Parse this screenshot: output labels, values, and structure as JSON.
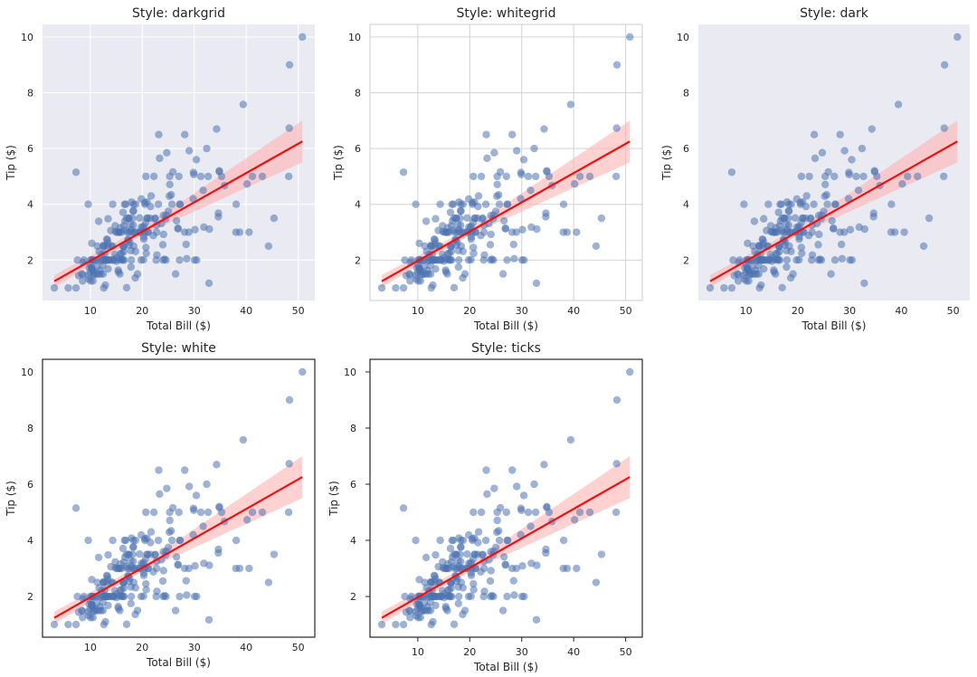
{
  "chart_data": [
    {
      "type": "scatter",
      "title": "Style: darkgrid",
      "style": "darkgrid",
      "xlabel": "Total Bill ($)",
      "ylabel": "Tip ($)",
      "x_ticks": [
        "10",
        "20",
        "30",
        "40",
        "50"
      ],
      "y_ticks": [
        "2",
        "4",
        "6",
        "8",
        "10"
      ],
      "xlim": [
        0.8,
        53.2
      ],
      "ylim": [
        0.55,
        10.45
      ],
      "grid": true
    },
    {
      "type": "scatter",
      "title": "Style: whitegrid",
      "style": "whitegrid",
      "xlabel": "Total Bill ($)",
      "ylabel": "Tip ($)",
      "x_ticks": [
        "10",
        "20",
        "30",
        "40",
        "50"
      ],
      "y_ticks": [
        "2",
        "4",
        "6",
        "8",
        "10"
      ],
      "xlim": [
        0.8,
        53.2
      ],
      "ylim": [
        0.55,
        10.45
      ],
      "grid": true
    },
    {
      "type": "scatter",
      "title": "Style: dark",
      "style": "dark",
      "xlabel": "Total Bill ($)",
      "ylabel": "Tip ($)",
      "x_ticks": [
        "10",
        "20",
        "30",
        "40",
        "50"
      ],
      "y_ticks": [
        "2",
        "4",
        "6",
        "8",
        "10"
      ],
      "xlim": [
        0.8,
        53.2
      ],
      "ylim": [
        0.55,
        10.45
      ],
      "grid": false
    },
    {
      "type": "scatter",
      "title": "Style: white",
      "style": "white",
      "xlabel": "Total Bill ($)",
      "ylabel": "Tip ($)",
      "x_ticks": [
        "10",
        "20",
        "30",
        "40",
        "50"
      ],
      "y_ticks": [
        "2",
        "4",
        "6",
        "8",
        "10"
      ],
      "xlim": [
        0.8,
        53.2
      ],
      "ylim": [
        0.55,
        10.45
      ],
      "grid": false
    },
    {
      "type": "scatter",
      "title": "Style: ticks",
      "style": "ticks",
      "xlabel": "Total Bill ($)",
      "ylabel": "Tip ($)",
      "x_ticks": [
        "10",
        "20",
        "30",
        "40",
        "50"
      ],
      "y_ticks": [
        "2",
        "4",
        "6",
        "8",
        "10"
      ],
      "xlim": [
        0.8,
        53.2
      ],
      "ylim": [
        0.55,
        10.45
      ],
      "grid": false
    }
  ],
  "shared": {
    "points": [
      [
        3.07,
        1.0
      ],
      [
        5.75,
        1.0
      ],
      [
        7.25,
        1.0
      ],
      [
        7.51,
        2.0
      ],
      [
        7.25,
        5.15
      ],
      [
        7.74,
        1.44
      ],
      [
        8.35,
        1.5
      ],
      [
        8.51,
        1.25
      ],
      [
        8.52,
        1.48
      ],
      [
        8.58,
        1.92
      ],
      [
        8.77,
        2.0
      ],
      [
        9.55,
        1.45
      ],
      [
        9.6,
        4.0
      ],
      [
        9.68,
        1.32
      ],
      [
        9.78,
        1.73
      ],
      [
        9.94,
        1.56
      ],
      [
        10.07,
        1.25
      ],
      [
        10.07,
        1.83
      ],
      [
        10.09,
        2.0
      ],
      [
        10.26,
        1.71
      ],
      [
        10.27,
        1.71
      ],
      [
        10.29,
        2.6
      ],
      [
        10.33,
        1.67
      ],
      [
        10.33,
        2.0
      ],
      [
        10.34,
        1.66
      ],
      [
        10.34,
        2.0
      ],
      [
        10.51,
        1.25
      ],
      [
        10.59,
        1.61
      ],
      [
        10.63,
        2.0
      ],
      [
        10.65,
        1.5
      ],
      [
        10.77,
        1.47
      ],
      [
        11.02,
        1.98
      ],
      [
        11.17,
        1.5
      ],
      [
        11.24,
        1.76
      ],
      [
        11.35,
        2.5
      ],
      [
        11.38,
        2.0
      ],
      [
        11.59,
        1.5
      ],
      [
        11.61,
        3.39
      ],
      [
        11.69,
        2.31
      ],
      [
        11.87,
        1.63
      ],
      [
        12.02,
        1.97
      ],
      [
        12.03,
        1.5
      ],
      [
        12.16,
        2.2
      ],
      [
        12.26,
        2.0
      ],
      [
        12.43,
        1.8
      ],
      [
        12.46,
        1.5
      ],
      [
        12.48,
        2.52
      ],
      [
        12.54,
        2.5
      ],
      [
        12.6,
        1.0
      ],
      [
        12.66,
        2.5
      ],
      [
        12.69,
        2.0
      ],
      [
        12.74,
        2.01
      ],
      [
        12.76,
        2.23
      ],
      [
        12.9,
        1.1
      ],
      [
        13.0,
        2.0
      ],
      [
        13.03,
        2.0
      ],
      [
        13.13,
        2.0
      ],
      [
        13.16,
        2.75
      ],
      [
        13.27,
        2.5
      ],
      [
        13.28,
        2.72
      ],
      [
        13.37,
        2.0
      ],
      [
        13.39,
        2.61
      ],
      [
        13.42,
        1.68
      ],
      [
        13.42,
        3.48
      ],
      [
        13.51,
        2.0
      ],
      [
        13.81,
        2.0
      ],
      [
        13.94,
        3.06
      ],
      [
        14.07,
        2.5
      ],
      [
        14.15,
        2.0
      ],
      [
        14.26,
        2.5
      ],
      [
        14.31,
        4.0
      ],
      [
        14.48,
        2.0
      ],
      [
        14.52,
        2.0
      ],
      [
        14.73,
        2.2
      ],
      [
        14.78,
        3.23
      ],
      [
        14.83,
        3.02
      ],
      [
        15.01,
        2.09
      ],
      [
        15.04,
        1.96
      ],
      [
        15.06,
        3.0
      ],
      [
        15.36,
        1.64
      ],
      [
        15.38,
        3.0
      ],
      [
        15.42,
        1.57
      ],
      [
        15.48,
        2.02
      ],
      [
        15.53,
        3.0
      ],
      [
        15.69,
        1.5
      ],
      [
        15.69,
        3.0
      ],
      [
        15.77,
        2.23
      ],
      [
        15.81,
        3.16
      ],
      [
        15.98,
        2.03
      ],
      [
        15.98,
        3.0
      ],
      [
        16.0,
        2.0
      ],
      [
        16.04,
        2.24
      ],
      [
        16.27,
        2.5
      ],
      [
        16.29,
        3.71
      ],
      [
        16.31,
        2.0
      ],
      [
        16.4,
        2.5
      ],
      [
        16.43,
        2.3
      ],
      [
        16.45,
        2.47
      ],
      [
        16.47,
        3.23
      ],
      [
        16.49,
        2.0
      ],
      [
        16.58,
        4.0
      ],
      [
        16.66,
        3.4
      ],
      [
        16.82,
        4.0
      ],
      [
        16.93,
        3.07
      ],
      [
        16.97,
        3.5
      ],
      [
        16.99,
        1.01
      ],
      [
        17.07,
        3.0
      ],
      [
        17.26,
        2.74
      ],
      [
        17.29,
        2.71
      ],
      [
        17.31,
        3.5
      ],
      [
        17.46,
        2.54
      ],
      [
        17.47,
        3.5
      ],
      [
        17.51,
        3.0
      ],
      [
        17.59,
        2.64
      ],
      [
        17.78,
        3.27
      ],
      [
        17.81,
        2.34
      ],
      [
        17.82,
        1.75
      ],
      [
        17.89,
        2.0
      ],
      [
        17.92,
        3.08
      ],
      [
        17.92,
        4.08
      ],
      [
        18.04,
        3.0
      ],
      [
        18.15,
        3.5
      ],
      [
        18.24,
        3.76
      ],
      [
        18.26,
        3.25
      ],
      [
        18.28,
        4.0
      ],
      [
        18.29,
        3.76
      ],
      [
        18.35,
        2.5
      ],
      [
        18.43,
        3.0
      ],
      [
        18.64,
        1.36
      ],
      [
        18.69,
        2.31
      ],
      [
        18.71,
        4.0
      ],
      [
        18.78,
        3.0
      ],
      [
        19.08,
        1.5
      ],
      [
        19.44,
        3.0
      ],
      [
        19.49,
        3.51
      ],
      [
        19.65,
        3.0
      ],
      [
        19.77,
        2.0
      ],
      [
        19.81,
        4.19
      ],
      [
        19.82,
        3.18
      ],
      [
        20.08,
        3.15
      ],
      [
        20.23,
        2.01
      ],
      [
        20.27,
        2.83
      ],
      [
        20.29,
        2.75
      ],
      [
        20.29,
        3.21
      ],
      [
        20.45,
        3.0
      ],
      [
        20.49,
        4.06
      ],
      [
        20.53,
        4.0
      ],
      [
        20.65,
        3.35
      ],
      [
        20.69,
        2.45
      ],
      [
        20.69,
        5.0
      ],
      [
        20.76,
        2.24
      ],
      [
        20.9,
        3.5
      ],
      [
        20.92,
        4.08
      ],
      [
        21.01,
        3.0
      ],
      [
        21.01,
        3.5
      ],
      [
        21.16,
        3.0
      ],
      [
        21.5,
        3.5
      ],
      [
        21.58,
        3.92
      ],
      [
        21.7,
        4.3
      ],
      [
        22.12,
        2.88
      ],
      [
        22.23,
        5.0
      ],
      [
        22.42,
        3.48
      ],
      [
        22.49,
        3.5
      ],
      [
        22.67,
        2.0
      ],
      [
        22.75,
        3.25
      ],
      [
        22.76,
        3.0
      ],
      [
        22.82,
        2.18
      ],
      [
        23.1,
        4.0
      ],
      [
        23.17,
        6.5
      ],
      [
        23.33,
        5.65
      ],
      [
        23.68,
        3.31
      ],
      [
        23.95,
        2.55
      ],
      [
        24.01,
        2.0
      ],
      [
        24.06,
        3.6
      ],
      [
        24.08,
        2.92
      ],
      [
        24.27,
        2.03
      ],
      [
        24.52,
        3.48
      ],
      [
        24.55,
        2.0
      ],
      [
        24.59,
        3.61
      ],
      [
        24.71,
        5.85
      ],
      [
        25.0,
        3.75
      ],
      [
        25.21,
        4.29
      ],
      [
        25.28,
        5.0
      ],
      [
        25.29,
        4.71
      ],
      [
        25.56,
        4.34
      ],
      [
        25.71,
        4.0
      ],
      [
        25.89,
        5.16
      ],
      [
        26.41,
        1.5
      ],
      [
        26.59,
        3.41
      ],
      [
        26.86,
        3.14
      ],
      [
        26.88,
        3.12
      ],
      [
        27.05,
        5.0
      ],
      [
        27.18,
        2.0
      ],
      [
        27.2,
        4.0
      ],
      [
        27.28,
        4.0
      ],
      [
        28.15,
        3.0
      ],
      [
        28.17,
        6.5
      ],
      [
        28.44,
        2.56
      ],
      [
        28.55,
        2.05
      ],
      [
        28.97,
        3.0
      ],
      [
        29.03,
        5.92
      ],
      [
        29.8,
        4.2
      ],
      [
        29.85,
        5.14
      ],
      [
        29.93,
        5.07
      ],
      [
        30.06,
        2.0
      ],
      [
        30.14,
        3.09
      ],
      [
        30.4,
        5.6
      ],
      [
        30.46,
        2.0
      ],
      [
        31.27,
        5.0
      ],
      [
        31.71,
        4.5
      ],
      [
        31.85,
        3.18
      ],
      [
        32.4,
        6.0
      ],
      [
        32.68,
        5.0
      ],
      [
        32.83,
        1.17
      ],
      [
        32.9,
        3.11
      ],
      [
        34.3,
        6.7
      ],
      [
        34.63,
        3.55
      ],
      [
        34.65,
        3.68
      ],
      [
        34.81,
        5.2
      ],
      [
        34.83,
        5.17
      ],
      [
        35.26,
        5.0
      ],
      [
        35.83,
        4.67
      ],
      [
        38.01,
        3.0
      ],
      [
        38.07,
        4.0
      ],
      [
        38.73,
        3.0
      ],
      [
        39.42,
        7.58
      ],
      [
        40.17,
        4.73
      ],
      [
        40.55,
        3.0
      ],
      [
        41.19,
        5.0
      ],
      [
        43.11,
        5.0
      ],
      [
        44.3,
        2.5
      ],
      [
        45.35,
        3.5
      ],
      [
        48.17,
        5.0
      ],
      [
        48.27,
        6.73
      ],
      [
        48.33,
        9.0
      ],
      [
        50.81,
        10.0
      ]
    ],
    "fit": {
      "x": [
        3.07,
        50.81
      ],
      "slope": 0.105,
      "intercept": 0.92
    },
    "ci_halfwidth": {
      "x": [
        3.07,
        20.0,
        50.81
      ],
      "hw": [
        0.22,
        0.13,
        0.75
      ]
    },
    "colors": {
      "points": "#4c72b0",
      "line": "#ee1111",
      "band": "#ffb3b3",
      "dark_bg": "#eaeaf2",
      "grid_dark": "#ffffff",
      "grid_light": "#d3d3d3",
      "text": "#262626",
      "spine": "#262626"
    }
  }
}
